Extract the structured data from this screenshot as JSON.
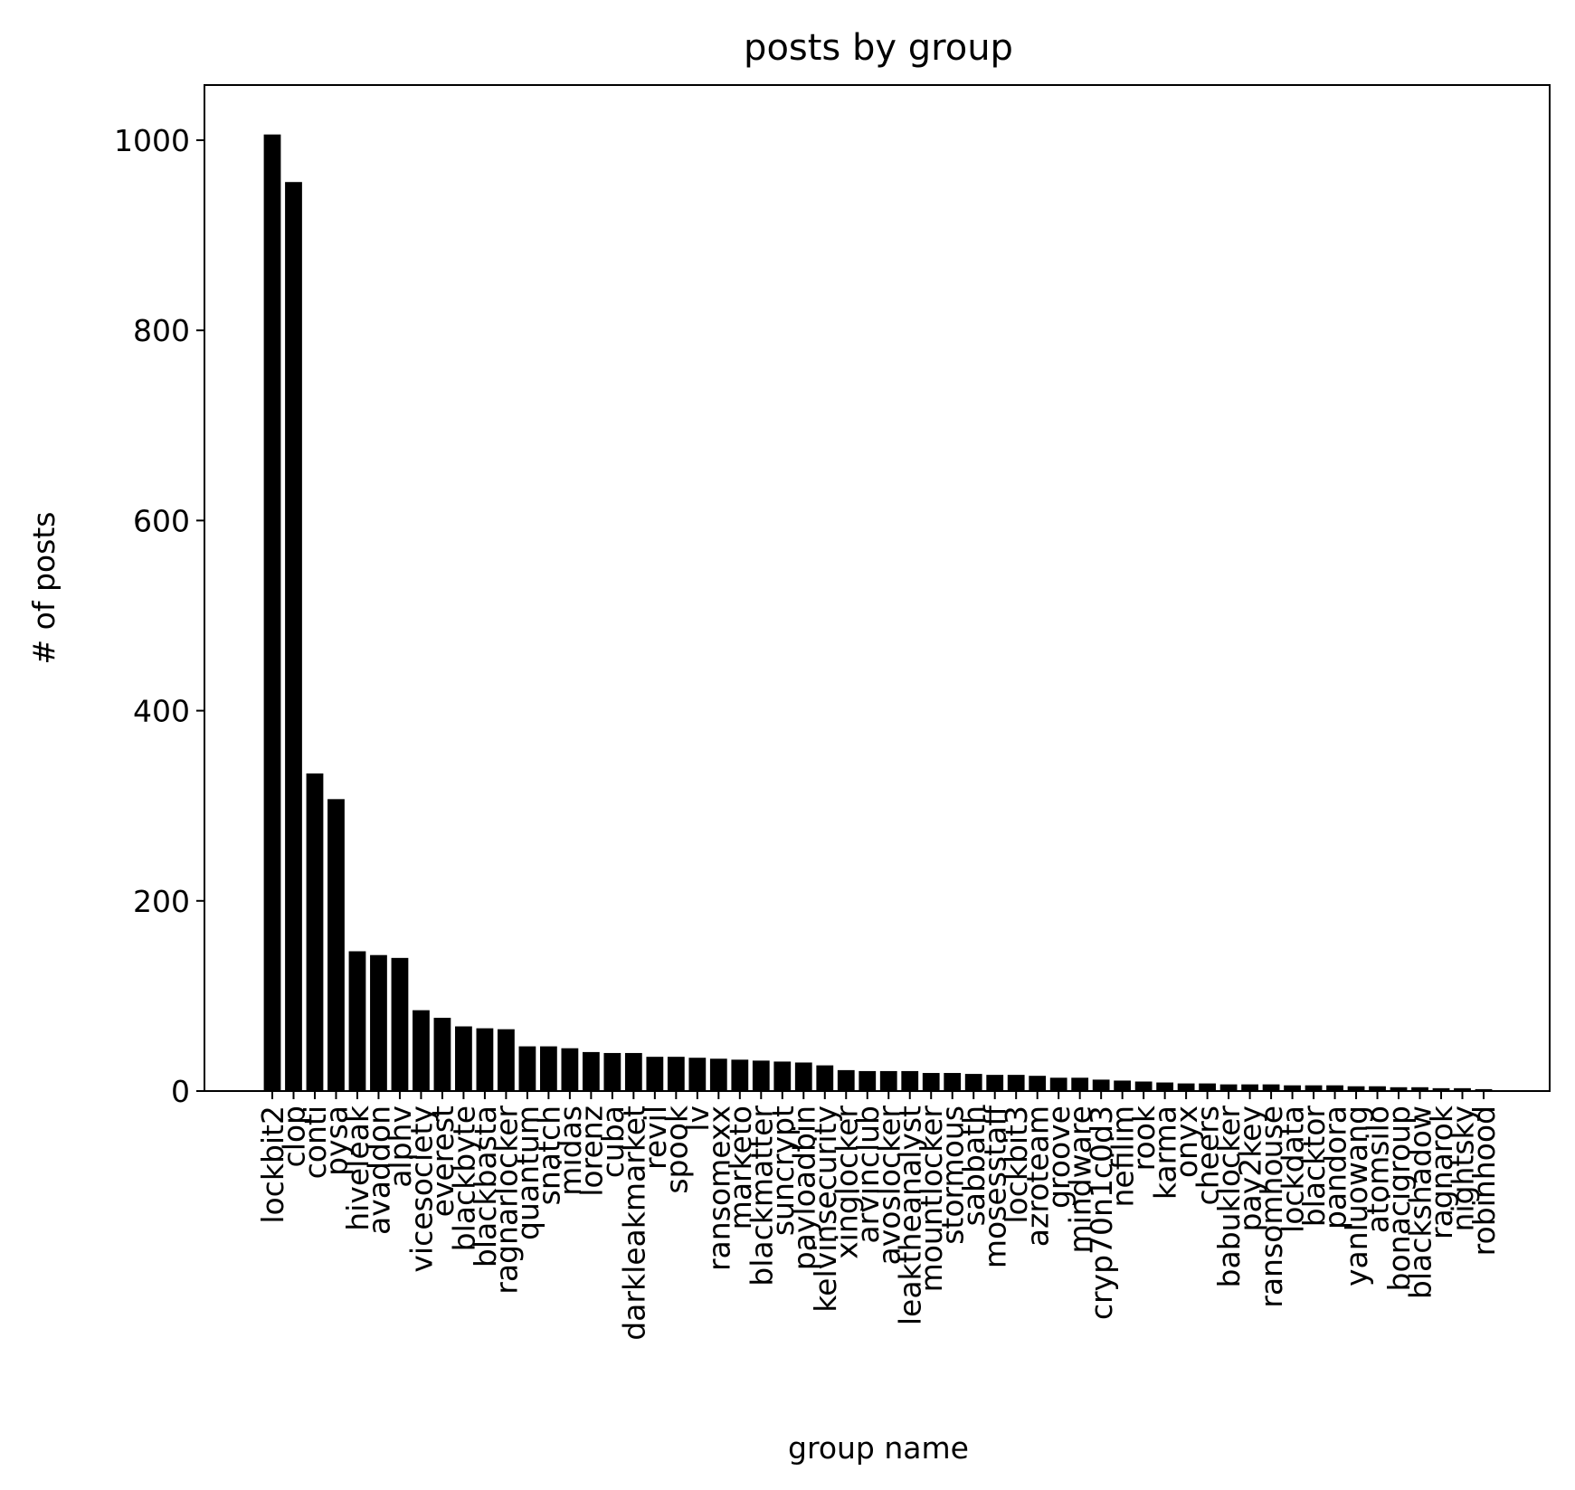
{
  "chart_data": {
    "type": "bar",
    "title": "posts by group",
    "xlabel": "group name",
    "ylabel": "# of posts",
    "ylim": [
      0,
      1058
    ],
    "yticks": [
      0,
      200,
      400,
      600,
      800,
      1000
    ],
    "grid": false,
    "bar_color": "#000000",
    "categories": [
      "lockbit2",
      "clop",
      "conti",
      "pysa",
      "hiveleak",
      "avaddon",
      "alphv",
      "vicesociety",
      "everest",
      "blackbyte",
      "blackbasta",
      "ragnarlocker",
      "quantum",
      "snatch",
      "midas",
      "lorenz",
      "cuba",
      "darkleakmarket",
      "revil",
      "spook",
      "lv",
      "ransomexx",
      "marketo",
      "blackmatter",
      "suncrypt",
      "payloadbin",
      "kelvinsecurity",
      "xinglocker",
      "arvinclub",
      "avoslocker",
      "leaktheanalyst",
      "mountlocker",
      "stormous",
      "sabbath",
      "mosesstaff",
      "lockbit3",
      "azroteam",
      "groove",
      "mindware",
      "cryp70n1c0d3",
      "nefilim",
      "rook",
      "karma",
      "onyx",
      "cheers",
      "babuklocker",
      "pay2key",
      "ransomhouse",
      "lockdata",
      "blacktor",
      "pandora",
      "yanluowang",
      "atomsilo",
      "bonacigroup",
      "blackshadow",
      "ragnarok",
      "nightsky",
      "robinhood"
    ],
    "values": [
      1006,
      956,
      334,
      307,
      147,
      143,
      140,
      85,
      77,
      68,
      66,
      65,
      47,
      47,
      45,
      41,
      40,
      40,
      36,
      36,
      35,
      34,
      33,
      32,
      31,
      30,
      27,
      22,
      21,
      21,
      21,
      19,
      19,
      18,
      17,
      17,
      16,
      14,
      14,
      12,
      11,
      10,
      9,
      8,
      8,
      7,
      7,
      7,
      6,
      6,
      6,
      5,
      5,
      4,
      4,
      3,
      3,
      2
    ]
  }
}
